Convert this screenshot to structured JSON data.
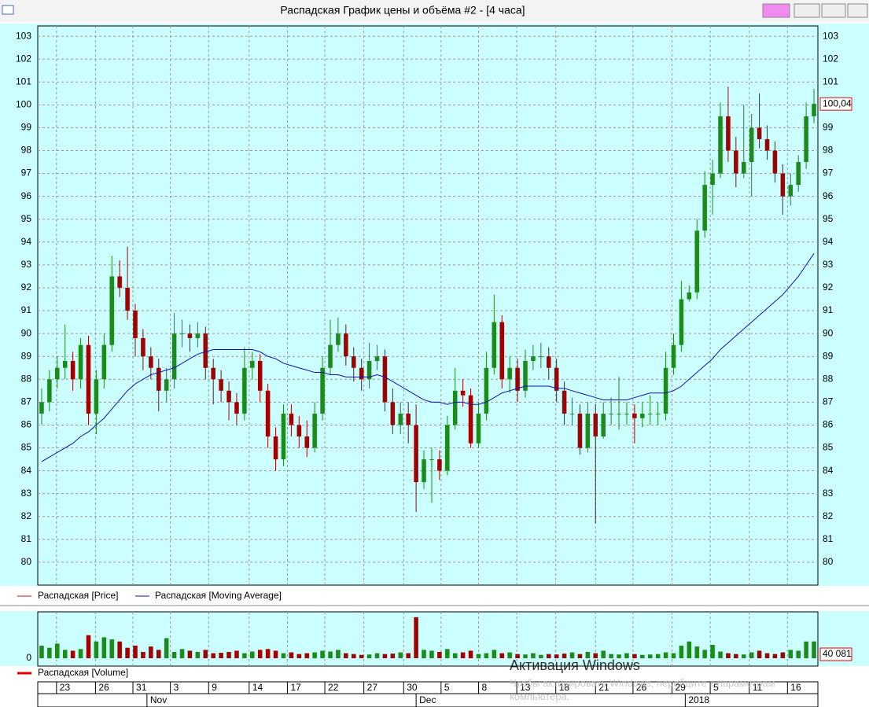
{
  "window": {
    "title": "Распадская График цены и объёма #2 - [4 часа]"
  },
  "watermark": {
    "title": "Активация Windows",
    "text": "Чтобы активировать Windows, перейдите к параметрам компьютера."
  },
  "chart_data": [
    {
      "type": "candlestick",
      "xlim": [
        -0.5,
        99.5
      ],
      "ylim": [
        79,
        103.45
      ],
      "yticks": [
        80,
        81,
        82,
        83,
        84,
        85,
        86,
        87,
        88,
        89,
        90,
        91,
        92,
        93,
        94,
        95,
        96,
        97,
        98,
        99,
        100,
        101,
        102,
        103
      ],
      "grid": true,
      "up_color": "#1b8c1b",
      "down_color": "#a30000",
      "last_value": {
        "value": 100.04,
        "label": "100,04"
      },
      "xticks": [
        {
          "value": 1.9,
          "label": "23"
        },
        {
          "value": 6.9,
          "label": "26"
        },
        {
          "value": 11.7,
          "label": "31"
        },
        {
          "value": 16.5,
          "label": "3"
        },
        {
          "value": 21.4,
          "label": "9"
        },
        {
          "value": 26.6,
          "label": "14"
        },
        {
          "value": 31.5,
          "label": "17"
        },
        {
          "value": 36.3,
          "label": "22"
        },
        {
          "value": 41.3,
          "label": "27"
        },
        {
          "value": 46.4,
          "label": "30"
        },
        {
          "value": 51.2,
          "label": "5"
        },
        {
          "value": 56.0,
          "label": "8"
        },
        {
          "value": 60.9,
          "label": "13"
        },
        {
          "value": 65.9,
          "label": "18"
        },
        {
          "value": 71.0,
          "label": "21"
        },
        {
          "value": 75.8,
          "label": "26"
        },
        {
          "value": 80.8,
          "label": "29"
        },
        {
          "value": 85.7,
          "label": "5"
        },
        {
          "value": 90.7,
          "label": "11"
        },
        {
          "value": 95.6,
          "label": "16"
        }
      ],
      "month_ticks": [
        {
          "value": 13.5,
          "label": "Nov"
        },
        {
          "value": 48.0,
          "label": "Dec"
        },
        {
          "value": 82.5,
          "label": "2018"
        }
      ],
      "series": [
        {
          "name": "Распадская [Price]",
          "color": "#d01010",
          "open": [
            86.5,
            87,
            88,
            88.5,
            88.8,
            88,
            89.5,
            86.5,
            88,
            89.5,
            92.5,
            92,
            91,
            89.8,
            89,
            88.5,
            87.5,
            88,
            90,
            90,
            89.8,
            90,
            88.5,
            88,
            87.5,
            87,
            86.5,
            88.5,
            88.8,
            87.5,
            85.5,
            84.5,
            86.5,
            86,
            85.5,
            85,
            86.5,
            88.5,
            89.5,
            90,
            89,
            88.5,
            88,
            88.8,
            89,
            87,
            86,
            86.5,
            86,
            83.5,
            84.5,
            84.5,
            84,
            86,
            87.5,
            87.3,
            85.2,
            86.5,
            88.5,
            90.5,
            88,
            88.5,
            87.5,
            88.8,
            89,
            89,
            88.5,
            87.5,
            86.5,
            86.5,
            85,
            86.5,
            85.5,
            86.5,
            86.5,
            86.5,
            86.5,
            86.3,
            86.5,
            86.5,
            86.5,
            88.5,
            89.5,
            91.5,
            91.8,
            94.5,
            96.5,
            97,
            99.5,
            98,
            97,
            97.5,
            99,
            98.5,
            98,
            97,
            96,
            96.5,
            97.5,
            99.5
          ],
          "high": [
            87.6,
            88.4,
            89.0,
            90.4,
            89.2,
            89.8,
            89.9,
            88.4,
            90.0,
            93.4,
            93.2,
            93.8,
            91.3,
            90.2,
            89.4,
            88.9,
            88.5,
            90.9,
            90.6,
            90.4,
            90.5,
            90.3,
            88.9,
            88.4,
            87.9,
            87.4,
            89.4,
            89.2,
            89.1,
            87.8,
            85.9,
            86.9,
            86.9,
            86.4,
            86.2,
            87.0,
            89.0,
            90.6,
            90.7,
            90.4,
            89.4,
            88.9,
            89.6,
            89.5,
            89.3,
            87.6,
            87.0,
            87.0,
            86.9,
            84.9,
            85.0,
            84.9,
            86.4,
            88.5,
            88.0,
            87.6,
            87.0,
            89.2,
            91.7,
            90.8,
            89.0,
            88.9,
            89.3,
            89.5,
            89.6,
            89.4,
            88.9,
            87.9,
            87.2,
            86.9,
            87.0,
            86.9,
            87.0,
            87.2,
            88.1,
            87.0,
            86.9,
            87.0,
            87.3,
            87.0,
            89.2,
            90.0,
            92.3,
            92.1,
            95.0,
            97.1,
            97.6,
            100.1,
            100.8,
            98.6,
            100.0,
            99.6,
            100.5,
            99.1,
            98.4,
            97.4,
            97.0,
            97.8,
            100.1,
            100.7
          ],
          "low": [
            86.0,
            86.6,
            87.6,
            88.0,
            87.5,
            87.6,
            86.0,
            85.6,
            87.6,
            89.2,
            91.6,
            90.6,
            89.0,
            88.4,
            88.0,
            86.6,
            87.0,
            87.6,
            89.4,
            89.2,
            89.4,
            88.0,
            86.9,
            87.0,
            86.2,
            86.0,
            86.2,
            88.0,
            87.0,
            85.0,
            84.0,
            84.2,
            85.5,
            85.0,
            84.6,
            84.8,
            86.2,
            88.2,
            89.2,
            88.6,
            87.9,
            87.5,
            87.6,
            88.4,
            86.6,
            85.6,
            85.6,
            85.2,
            82.2,
            83.2,
            82.6,
            83.6,
            83.8,
            85.8,
            86.8,
            85.0,
            85.0,
            86.2,
            88.2,
            87.6,
            87.4,
            87.0,
            87.2,
            88.4,
            88.5,
            88.0,
            87.0,
            86.0,
            86.0,
            84.7,
            84.8,
            81.7,
            85.4,
            86.0,
            85.8,
            86.0,
            85.2,
            85.9,
            86.0,
            86.0,
            86.2,
            88.2,
            89.2,
            91.4,
            91.5,
            94.2,
            95.2,
            96.8,
            97.5,
            96.4,
            96.8,
            96.0,
            98.1,
            97.6,
            96.6,
            95.2,
            95.6,
            96.2,
            97.2,
            99.2
          ],
          "close": [
            87,
            88,
            88.5,
            88.8,
            88,
            89.5,
            86.5,
            88,
            89.5,
            92.5,
            92,
            91,
            89.8,
            89,
            88.5,
            87.5,
            88,
            90,
            90,
            89.8,
            90,
            88.5,
            88,
            87.5,
            87,
            86.5,
            88.5,
            88.8,
            87.5,
            85.5,
            84.5,
            86.5,
            86,
            85.5,
            85,
            86.5,
            88.5,
            89.5,
            90,
            89,
            88.5,
            88,
            88.8,
            89,
            87,
            86,
            86.5,
            86,
            83.5,
            84.5,
            84.5,
            84,
            86,
            87.5,
            87.3,
            85.2,
            86.5,
            88.5,
            90.5,
            88,
            88.5,
            87.5,
            88.8,
            89,
            89,
            88.5,
            87.5,
            86.5,
            86.5,
            85,
            86.5,
            85.5,
            86.5,
            86.5,
            86.5,
            86.5,
            86.3,
            86.5,
            86.5,
            86.5,
            88.5,
            89.5,
            91.5,
            91.8,
            94.5,
            96.5,
            97,
            99.5,
            98,
            97,
            97.5,
            99,
            98.5,
            98,
            97,
            96,
            96.5,
            97.5,
            99.5,
            100.04
          ]
        },
        {
          "name": "Распадская [Moving Average]",
          "color": "#1010b0",
          "values": [
            84.4,
            84.6,
            84.8,
            85.0,
            85.2,
            85.5,
            85.7,
            86.0,
            86.3,
            86.7,
            87.1,
            87.5,
            87.8,
            88.0,
            88.2,
            88.3,
            88.4,
            88.5,
            88.7,
            88.9,
            89.1,
            89.2,
            89.3,
            89.3,
            89.3,
            89.3,
            89.3,
            89.3,
            89.2,
            89.0,
            88.9,
            88.7,
            88.6,
            88.5,
            88.4,
            88.3,
            88.3,
            88.2,
            88.2,
            88.1,
            88.1,
            88.1,
            88.1,
            88.2,
            88.1,
            87.9,
            87.7,
            87.5,
            87.3,
            87.1,
            87.0,
            87.0,
            86.9,
            87.0,
            87.0,
            86.9,
            86.9,
            87.0,
            87.2,
            87.4,
            87.5,
            87.6,
            87.7,
            87.7,
            87.7,
            87.7,
            87.6,
            87.6,
            87.5,
            87.4,
            87.3,
            87.2,
            87.1,
            87.1,
            87.1,
            87.1,
            87.2,
            87.3,
            87.4,
            87.4,
            87.4,
            87.5,
            87.7,
            88.0,
            88.3,
            88.6,
            88.9,
            89.3,
            89.6,
            89.9,
            90.2,
            90.5,
            90.8,
            91.1,
            91.4,
            91.7,
            92.1,
            92.5,
            93.0,
            93.5
          ]
        }
      ]
    },
    {
      "type": "bar",
      "xlim": [
        -0.5,
        99.5
      ],
      "ylim": [
        0,
        107000
      ],
      "yticks": [
        0
      ],
      "last_value": {
        "value": 40081,
        "label": "40 081"
      },
      "series": [
        {
          "name": "Распадская [Volume]",
          "color": "#e00000",
          "values": [
            30000,
            25000,
            35000,
            20000,
            18000,
            22000,
            55000,
            40000,
            50000,
            45000,
            40000,
            25000,
            30000,
            15000,
            28000,
            20000,
            48000,
            15000,
            22000,
            18000,
            15000,
            20000,
            12000,
            13000,
            15000,
            18000,
            12000,
            16000,
            20000,
            22000,
            18000,
            12000,
            14000,
            10000,
            12000,
            14000,
            18000,
            16000,
            20000,
            12000,
            10000,
            8000,
            9000,
            12000,
            10000,
            11000,
            14000,
            12000,
            98000,
            20000,
            18000,
            15000,
            22000,
            12000,
            14000,
            18000,
            10000,
            12000,
            20000,
            12000,
            14000,
            10000,
            9000,
            12000,
            8000,
            10000,
            9000,
            11000,
            14000,
            10000,
            15000,
            12000,
            18000,
            10000,
            9000,
            12000,
            10000,
            8000,
            9000,
            10000,
            14000,
            12000,
            30000,
            40000,
            28000,
            20000,
            32000,
            16000,
            12000,
            10000,
            9000,
            14000,
            18000,
            12000,
            10000,
            14000,
            20000,
            18000,
            40000,
            40081
          ]
        }
      ]
    }
  ]
}
